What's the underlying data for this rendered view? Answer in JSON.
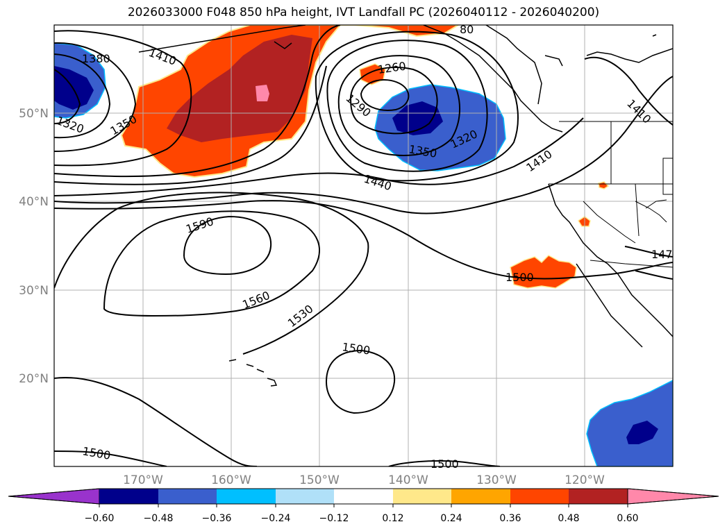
{
  "title": "2026033000 F048 850 hPa height, IVT Landfall PC (2026040112 - 2026040200)",
  "lat_labels": [
    "50°N",
    "40°N",
    "30°N",
    "20°N"
  ],
  "lon_labels": [
    "170°W",
    "160°W",
    "150°W",
    "140°W",
    "130°W",
    "120°W"
  ],
  "contour_labels": [
    "1380",
    "1410",
    "1320",
    "1350",
    "1260",
    "1290",
    "1320",
    "1350",
    "1410",
    "1440",
    "1410",
    "1590",
    "1560",
    "1530",
    "1500",
    "1500",
    "1500",
    "1500",
    "147",
    "80"
  ],
  "colorbar": {
    "tick_labels": [
      "−0.60",
      "−0.48",
      "−0.36",
      "−0.24",
      "−0.12",
      "0.12",
      "0.24",
      "0.36",
      "0.48",
      "0.60"
    ],
    "colors": [
      "#9933cc",
      "#00008b",
      "#3a5fcd",
      "#00bfff",
      "#b0e0f8",
      "#ffffff",
      "#ffe88a",
      "#ffa500",
      "#ff4500",
      "#b22222",
      "#ff88aa"
    ]
  },
  "colors": {
    "land_line": "#000000",
    "grid": "#b0b0b0",
    "contour": "#000000"
  }
}
